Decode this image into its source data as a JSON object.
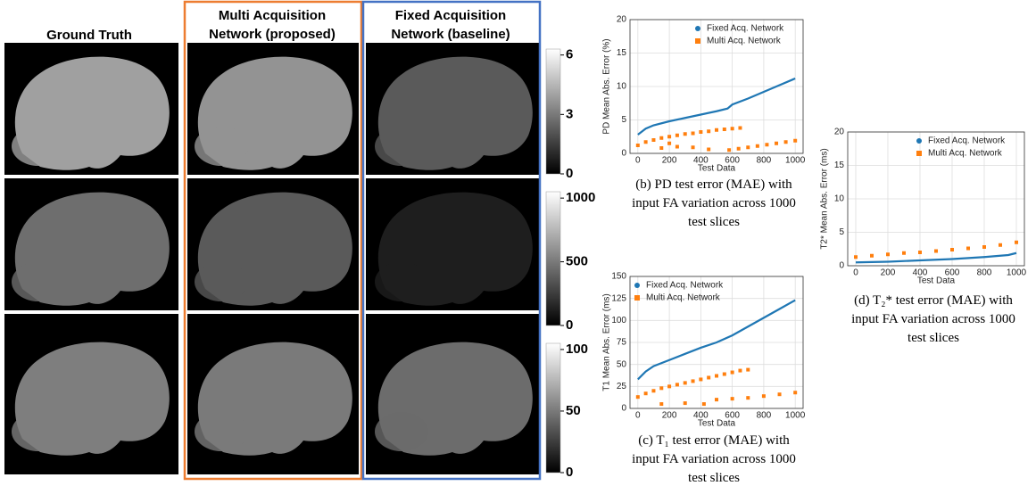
{
  "panel": {
    "headers": [
      "Ground Truth",
      "Multi Acquisition Network (proposed)",
      "Fixed Acquisition Network (baseline)"
    ],
    "colorbars": [
      {
        "lim": [
          0,
          6.3
        ],
        "ticks": [
          0,
          3,
          6
        ]
      },
      {
        "lim": [
          0,
          1050
        ],
        "ticks": [
          0,
          500,
          1000
        ]
      },
      {
        "lim": [
          0,
          105
        ],
        "ticks": [
          0,
          50,
          100
        ]
      }
    ]
  },
  "chart_data": [
    {
      "type": "scatter",
      "caption": "(b) PD test error (MAE) with input FA variation across 1000 test  slices",
      "xlabel": "Test Data",
      "ylabel": "PD Mean Abs. Error (%)",
      "xlim": [
        -50,
        1050
      ],
      "xticks": [
        0,
        200,
        400,
        600,
        800,
        1000
      ],
      "ylim": [
        0,
        20
      ],
      "yticks": [
        0,
        5,
        10,
        15,
        20
      ],
      "grid": true,
      "legend": "upper-right",
      "series": [
        {
          "name": "Fixed Acq. Network",
          "color": "#1f77b4",
          "style": "line",
          "x": [
            0,
            50,
            100,
            200,
            300,
            400,
            500,
            570,
            600,
            700,
            800,
            900,
            1000
          ],
          "values": [
            2.8,
            3.7,
            4.2,
            4.8,
            5.3,
            5.8,
            6.3,
            6.7,
            7.3,
            8.2,
            9.2,
            10.2,
            11.2
          ]
        },
        {
          "name": "Multi Acq. Network",
          "color": "#ff7f0e",
          "style": "points",
          "x": [
            0,
            50,
            100,
            150,
            200,
            250,
            300,
            350,
            400,
            450,
            500,
            550,
            600,
            650,
            580,
            640,
            700,
            760,
            820,
            880,
            940,
            1000,
            150,
            200,
            250,
            350,
            450
          ],
          "values": [
            1.2,
            1.7,
            2.0,
            2.3,
            2.5,
            2.7,
            2.9,
            3.0,
            3.2,
            3.3,
            3.5,
            3.6,
            3.7,
            3.8,
            0.5,
            0.7,
            0.9,
            1.1,
            1.3,
            1.5,
            1.7,
            1.9,
            0.8,
            1.5,
            1.0,
            0.9,
            0.6
          ]
        }
      ]
    },
    {
      "type": "scatter",
      "caption": "(c) T₁ test error (MAE) with input FA variation across 1000 test  slices",
      "xlabel": "Test Data",
      "ylabel": "T1 Mean Abs. Error (ms)",
      "xlim": [
        -50,
        1050
      ],
      "xticks": [
        0,
        200,
        400,
        600,
        800,
        1000
      ],
      "ylim": [
        0,
        150
      ],
      "yticks": [
        0,
        25,
        50,
        75,
        100,
        125,
        150
      ],
      "grid": true,
      "legend": "upper-left",
      "series": [
        {
          "name": "Fixed Acq. Network",
          "color": "#1f77b4",
          "style": "line",
          "x": [
            0,
            50,
            100,
            200,
            300,
            400,
            500,
            600,
            700,
            800,
            900,
            1000
          ],
          "values": [
            33,
            42,
            48,
            55,
            62,
            69,
            75,
            83,
            93,
            103,
            113,
            123
          ]
        },
        {
          "name": "Multi Acq. Network",
          "color": "#ff7f0e",
          "style": "points",
          "x": [
            0,
            50,
            100,
            150,
            200,
            250,
            300,
            350,
            400,
            450,
            500,
            550,
            600,
            650,
            700,
            500,
            600,
            700,
            800,
            900,
            1000,
            150,
            300,
            420
          ],
          "values": [
            13,
            17,
            20,
            23,
            25,
            27,
            29,
            31,
            33,
            35,
            37,
            39,
            41,
            43,
            44,
            10,
            11,
            12,
            14,
            16,
            18,
            5,
            6,
            5
          ]
        }
      ]
    },
    {
      "type": "scatter",
      "caption": "(d) T₂* test error (MAE) with input FA variation across 1000 test  slices",
      "xlabel": "Test Data",
      "ylabel": "T2* Mean Abs. Error (ms)",
      "xlim": [
        -50,
        1050
      ],
      "xticks": [
        0,
        200,
        400,
        600,
        800,
        1000
      ],
      "ylim": [
        0,
        20
      ],
      "yticks": [
        0,
        5,
        10,
        15,
        20
      ],
      "grid": true,
      "legend": "upper-right",
      "series": [
        {
          "name": "Fixed Acq. Network",
          "color": "#1f77b4",
          "style": "line",
          "x": [
            0,
            200,
            400,
            600,
            800,
            950,
            1000
          ],
          "values": [
            0.5,
            0.6,
            0.8,
            1.0,
            1.3,
            1.6,
            1.9
          ]
        },
        {
          "name": "Multi Acq. Network",
          "color": "#ff7f0e",
          "style": "points",
          "x": [
            0,
            100,
            200,
            300,
            400,
            500,
            600,
            700,
            800,
            900,
            1000
          ],
          "values": [
            1.3,
            1.5,
            1.7,
            1.9,
            2.0,
            2.2,
            2.4,
            2.6,
            2.8,
            3.1,
            3.5
          ]
        }
      ]
    }
  ]
}
